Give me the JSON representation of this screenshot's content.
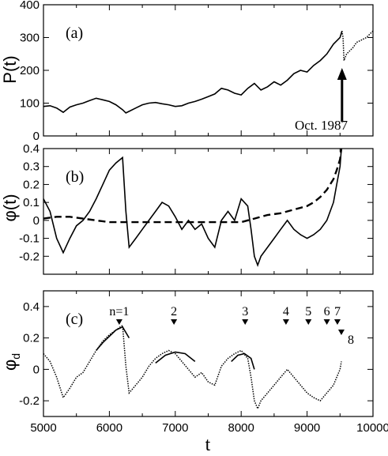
{
  "chart_data": [
    {
      "type": "line",
      "panel_label": "(a)",
      "ylabel": "P(t)",
      "xlim": [
        5000,
        10000
      ],
      "ylim": [
        0,
        400
      ],
      "yticks": [
        0,
        100,
        200,
        300,
        400
      ],
      "annotation": "Oct. 1987",
      "series": [
        {
          "style": "solid",
          "x": [
            5000,
            5100,
            5200,
            5300,
            5400,
            5500,
            5600,
            5700,
            5800,
            5900,
            6000,
            6100,
            6200,
            6250,
            6300,
            6400,
            6500,
            6600,
            6700,
            6800,
            6900,
            7000,
            7100,
            7200,
            7300,
            7400,
            7500,
            7600,
            7700,
            7800,
            7900,
            8000,
            8100,
            8200,
            8300,
            8400,
            8500,
            8600,
            8700,
            8800,
            8900,
            9000,
            9100,
            9200,
            9300,
            9400,
            9500,
            9530
          ],
          "y": [
            90,
            92,
            85,
            72,
            88,
            95,
            100,
            108,
            115,
            110,
            105,
            95,
            80,
            70,
            75,
            85,
            95,
            100,
            102,
            98,
            95,
            90,
            92,
            100,
            105,
            112,
            120,
            128,
            145,
            140,
            130,
            125,
            145,
            160,
            140,
            150,
            165,
            155,
            170,
            190,
            200,
            195,
            215,
            230,
            250,
            280,
            300,
            320
          ]
        },
        {
          "style": "dotted",
          "x": [
            9530,
            9545,
            9560,
            9580,
            9600,
            9650,
            9700,
            9750,
            9800,
            9850,
            9900,
            9950,
            10000
          ],
          "y": [
            320,
            300,
            230,
            240,
            250,
            260,
            270,
            285,
            290,
            295,
            300,
            310,
            320
          ]
        }
      ]
    },
    {
      "type": "line",
      "panel_label": "(b)",
      "ylabel": "φ(t)",
      "xlim": [
        5000,
        10000
      ],
      "ylim": [
        -0.3,
        0.4
      ],
      "yticks": [
        -0.2,
        -0.1,
        0,
        0.1,
        0.2,
        0.3,
        0.4
      ],
      "ytick_labels": [
        "-0.2",
        "-0.1",
        "0",
        "0.1",
        "0.2",
        "0.3",
        "0.4"
      ],
      "series": [
        {
          "style": "solid",
          "x": [
            5000,
            5100,
            5200,
            5300,
            5400,
            5500,
            5600,
            5700,
            5800,
            5900,
            6000,
            6100,
            6200,
            6250,
            6300,
            6400,
            6500,
            6600,
            6700,
            6800,
            6900,
            7000,
            7100,
            7200,
            7300,
            7400,
            7500,
            7600,
            7700,
            7800,
            7900,
            8000,
            8100,
            8150,
            8200,
            8250,
            8300,
            8400,
            8500,
            8600,
            8700,
            8800,
            8900,
            9000,
            9100,
            9200,
            9300,
            9400,
            9450,
            9500,
            9520
          ],
          "y": [
            0.12,
            0.05,
            -0.1,
            -0.18,
            -0.1,
            -0.03,
            0.0,
            0.05,
            0.12,
            0.2,
            0.28,
            0.32,
            0.35,
            0.05,
            -0.15,
            -0.1,
            -0.05,
            0.0,
            0.05,
            0.1,
            0.08,
            0.02,
            -0.05,
            0.0,
            -0.05,
            -0.02,
            -0.1,
            -0.15,
            0.0,
            0.05,
            0.0,
            0.12,
            0.08,
            -0.05,
            -0.2,
            -0.25,
            -0.2,
            -0.15,
            -0.1,
            -0.05,
            0.0,
            -0.05,
            -0.08,
            -0.1,
            -0.08,
            -0.05,
            0.0,
            0.1,
            0.2,
            0.3,
            0.4
          ]
        },
        {
          "style": "dashed",
          "x": [
            5000,
            5200,
            5400,
            5600,
            5800,
            6000,
            6200,
            6400,
            6600,
            6800,
            7000,
            7200,
            7400,
            7600,
            7800,
            8000,
            8200,
            8400,
            8600,
            8800,
            9000,
            9100,
            9200,
            9300,
            9400,
            9450,
            9500,
            9520
          ],
          "y": [
            0.01,
            0.02,
            0.02,
            0.01,
            0.0,
            -0.01,
            -0.01,
            -0.01,
            -0.01,
            -0.01,
            -0.01,
            -0.01,
            -0.01,
            -0.01,
            -0.01,
            -0.01,
            0.01,
            0.03,
            0.04,
            0.06,
            0.08,
            0.1,
            0.13,
            0.17,
            0.23,
            0.28,
            0.34,
            0.4
          ]
        }
      ]
    },
    {
      "type": "line",
      "panel_label": "(c)",
      "ylabel": "φd",
      "xlabel": "t",
      "xlim": [
        5000,
        10000
      ],
      "ylim": [
        -0.3,
        0.5
      ],
      "yticks": [
        -0.2,
        0,
        0.2,
        0.4
      ],
      "ytick_labels": [
        "-0.2",
        "0",
        "0.2",
        "0.4"
      ],
      "xticks": [
        5000,
        6000,
        7000,
        8000,
        9000,
        10000
      ],
      "series": [
        {
          "style": "dotted",
          "x": [
            5000,
            5100,
            5200,
            5300,
            5400,
            5500,
            5600,
            5700,
            5800,
            5900,
            6000,
            6100,
            6200,
            6250,
            6300,
            6400,
            6500,
            6600,
            6700,
            6800,
            6900,
            7000,
            7100,
            7200,
            7300,
            7400,
            7500,
            7600,
            7700,
            7800,
            7900,
            8000,
            8100,
            8150,
            8200,
            8250,
            8300,
            8400,
            8500,
            8600,
            8700,
            8800,
            8900,
            9000,
            9100,
            9200,
            9300,
            9400,
            9450,
            9500,
            9520
          ],
          "y": [
            0.1,
            0.05,
            -0.05,
            -0.18,
            -0.12,
            -0.05,
            -0.02,
            0.05,
            0.12,
            0.18,
            0.22,
            0.25,
            0.28,
            0.02,
            -0.15,
            -0.1,
            -0.05,
            0.02,
            0.07,
            0.1,
            0.12,
            0.1,
            0.05,
            0.0,
            -0.05,
            -0.02,
            -0.08,
            -0.1,
            0.02,
            0.07,
            0.1,
            0.12,
            0.07,
            -0.05,
            -0.2,
            -0.25,
            -0.2,
            -0.15,
            -0.1,
            -0.05,
            0.0,
            -0.05,
            -0.1,
            -0.15,
            -0.18,
            -0.2,
            -0.15,
            -0.1,
            -0.05,
            0.0,
            0.05
          ]
        },
        {
          "style": "solid",
          "x": [
            5800,
            5900,
            6000,
            6100,
            6200,
            6300
          ],
          "y": [
            0.12,
            0.17,
            0.21,
            0.25,
            0.27,
            0.2
          ]
        },
        {
          "style": "solid",
          "x": [
            6700,
            6850,
            7000,
            7150,
            7300
          ],
          "y": [
            0.04,
            0.09,
            0.11,
            0.1,
            0.05
          ]
        },
        {
          "style": "solid",
          "x": [
            7850,
            7950,
            8050,
            8150,
            8200
          ],
          "y": [
            0.05,
            0.09,
            0.1,
            0.07,
            0.0
          ]
        }
      ],
      "markers": [
        {
          "label": "n=1",
          "x": 6150
        },
        {
          "label": "2",
          "x": 6980
        },
        {
          "label": "3",
          "x": 8060
        },
        {
          "label": "4",
          "x": 8680
        },
        {
          "label": "5",
          "x": 9020
        },
        {
          "label": "6",
          "x": 9300
        },
        {
          "label": "7",
          "x": 9460
        },
        {
          "label": "8",
          "x": 9520
        }
      ]
    }
  ]
}
